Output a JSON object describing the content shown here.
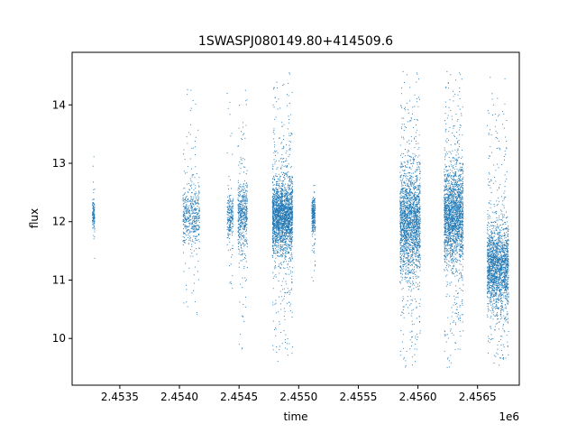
{
  "chart_data": {
    "type": "scatter",
    "title": "1SWASPJ080149.80+414509.6",
    "xlabel": "time",
    "ylabel": "flux",
    "x_offset_label": "1e6",
    "xlim": [
      2453100,
      2456850
    ],
    "ylim": [
      9.2,
      14.9
    ],
    "x_ticks": [
      2453500,
      2454000,
      2454500,
      2455000,
      2455500,
      2456000,
      2456500
    ],
    "x_tick_labels": [
      "2.4535",
      "2.4540",
      "2.4545",
      "2.4550",
      "2.4555",
      "2.4560",
      "2.4565"
    ],
    "y_ticks": [
      10,
      11,
      12,
      13,
      14
    ],
    "y_tick_labels": [
      "10",
      "11",
      "12",
      "13",
      "14"
    ],
    "grid": false,
    "legend": "none",
    "marker_color": "#1f77b4",
    "series": [
      {
        "groups": [
          {
            "x_range": [
              2453270,
              2453290
            ],
            "center": 12.1,
            "core_sd": 0.15,
            "y_range": [
              11.3,
              13.6
            ],
            "count": 120
          },
          {
            "x_range": [
              2454030,
              2454170
            ],
            "center": 12.1,
            "core_sd": 0.25,
            "y_range": [
              10.0,
              14.4
            ],
            "count": 500
          },
          {
            "x_range": [
              2454400,
              2454450
            ],
            "center": 12.1,
            "core_sd": 0.2,
            "y_range": [
              10.2,
              14.6
            ],
            "count": 220
          },
          {
            "x_range": [
              2454490,
              2454570
            ],
            "center": 12.1,
            "core_sd": 0.3,
            "y_range": [
              9.6,
              14.3
            ],
            "count": 500
          },
          {
            "x_range": [
              2454780,
              2454950
            ],
            "center": 12.1,
            "core_sd": 0.3,
            "y_range": [
              9.6,
              14.6
            ],
            "count": 2200
          },
          {
            "x_range": [
              2455110,
              2455140
            ],
            "center": 12.1,
            "core_sd": 0.15,
            "y_range": [
              10.8,
              12.8
            ],
            "count": 250
          },
          {
            "x_range": [
              2455850,
              2456020
            ],
            "center": 12.0,
            "core_sd": 0.45,
            "y_range": [
              9.5,
              14.6
            ],
            "count": 2000
          },
          {
            "x_range": [
              2456220,
              2456380
            ],
            "center": 12.1,
            "core_sd": 0.4,
            "y_range": [
              9.5,
              14.6
            ],
            "count": 2000
          },
          {
            "x_range": [
              2456580,
              2456760
            ],
            "center": 11.2,
            "core_sd": 0.35,
            "y_range": [
              9.5,
              14.5
            ],
            "count": 1900
          }
        ]
      }
    ]
  }
}
